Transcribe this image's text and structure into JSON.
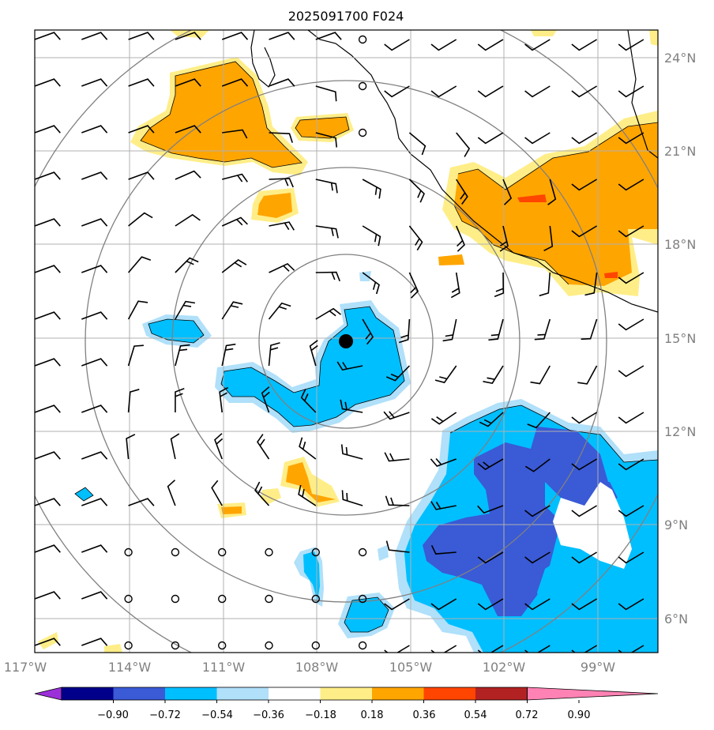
{
  "title": "2025091700 F024",
  "longitude_labels": [
    "117°W",
    "114°W",
    "111°W",
    "108°W",
    "105°W",
    "102°W",
    "99°W"
  ],
  "latitude_labels": [
    "24°N",
    "21°N",
    "18°N",
    "15°N",
    "12°N",
    "9°N",
    "6°N"
  ],
  "colorbar": {
    "tick_labels": [
      "−0.90",
      "−0.72",
      "−0.54",
      "−0.36",
      "−0.18",
      "0.18",
      "0.36",
      "0.54",
      "0.72",
      "0.90"
    ],
    "colors": [
      "#9b30d9",
      "#00008b",
      "#3a5ad6",
      "#00bfff",
      "#b0e0fa",
      "#ffffff",
      "#ffee88",
      "#ffa500",
      "#ff4500",
      "#b22222",
      "#ff82b4"
    ]
  },
  "map_extent": {
    "lon_min": -117,
    "lon_max": -97,
    "lat_min": 5,
    "lat_max": 25
  },
  "storm_center": {
    "lon": -107.1,
    "lat": 14.9
  },
  "range_rings_deg": [
    2.8,
    5.5,
    8.3,
    11.0
  ]
}
